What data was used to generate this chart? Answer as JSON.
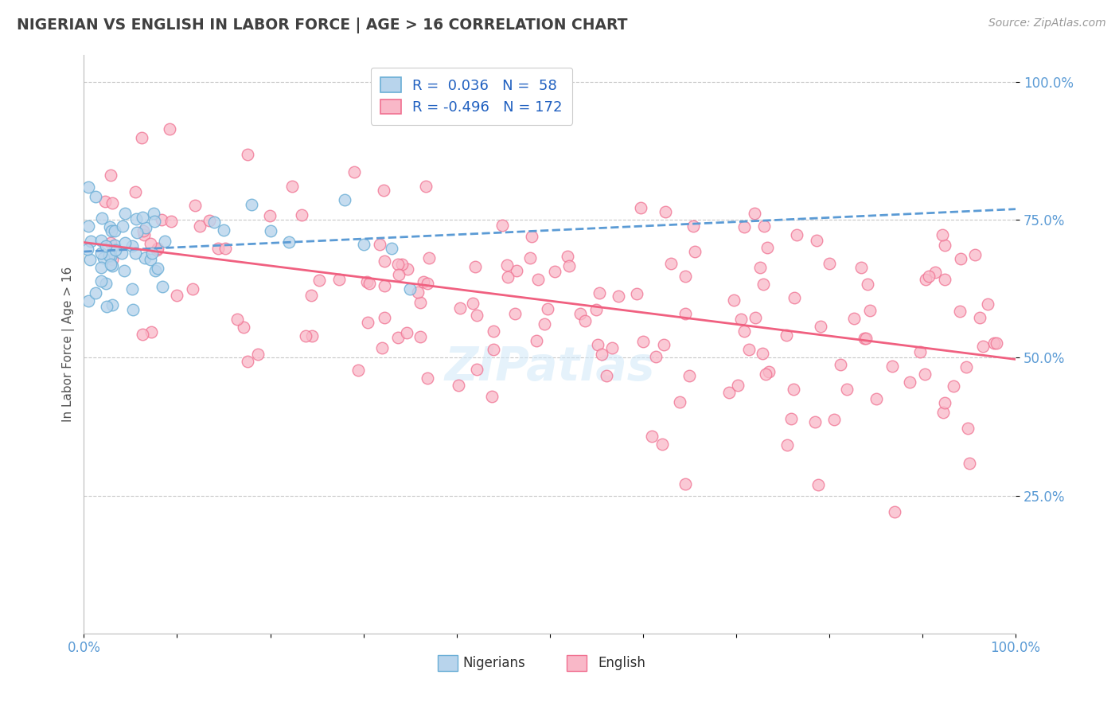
{
  "title": "NIGERIAN VS ENGLISH IN LABOR FORCE | AGE > 16 CORRELATION CHART",
  "source": "Source: ZipAtlas.com",
  "ylabel": "In Labor Force | Age > 16",
  "xlim": [
    0.0,
    1.0
  ],
  "ylim": [
    0.0,
    1.05
  ],
  "ytick_positions": [
    0.25,
    0.5,
    0.75,
    1.0
  ],
  "ytick_labels": [
    "25.0%",
    "50.0%",
    "75.0%",
    "100.0%"
  ],
  "nigerians_fill": "#b8d4ec",
  "nigerians_edge": "#6aaed6",
  "english_fill": "#f9b8c8",
  "english_edge": "#f07090",
  "nigerian_line_color": "#5b9bd5",
  "english_line_color": "#f06080",
  "legend_nigerian_label": "Nigerians",
  "legend_english_label": "English",
  "r_nigerian": 0.036,
  "n_nigerian": 58,
  "r_english": -0.496,
  "n_english": 172,
  "background_color": "#ffffff",
  "grid_color": "#c8c8c8",
  "title_color": "#404040",
  "axis_label_color": "#5b9bd5",
  "watermark": "ZIPatlas"
}
